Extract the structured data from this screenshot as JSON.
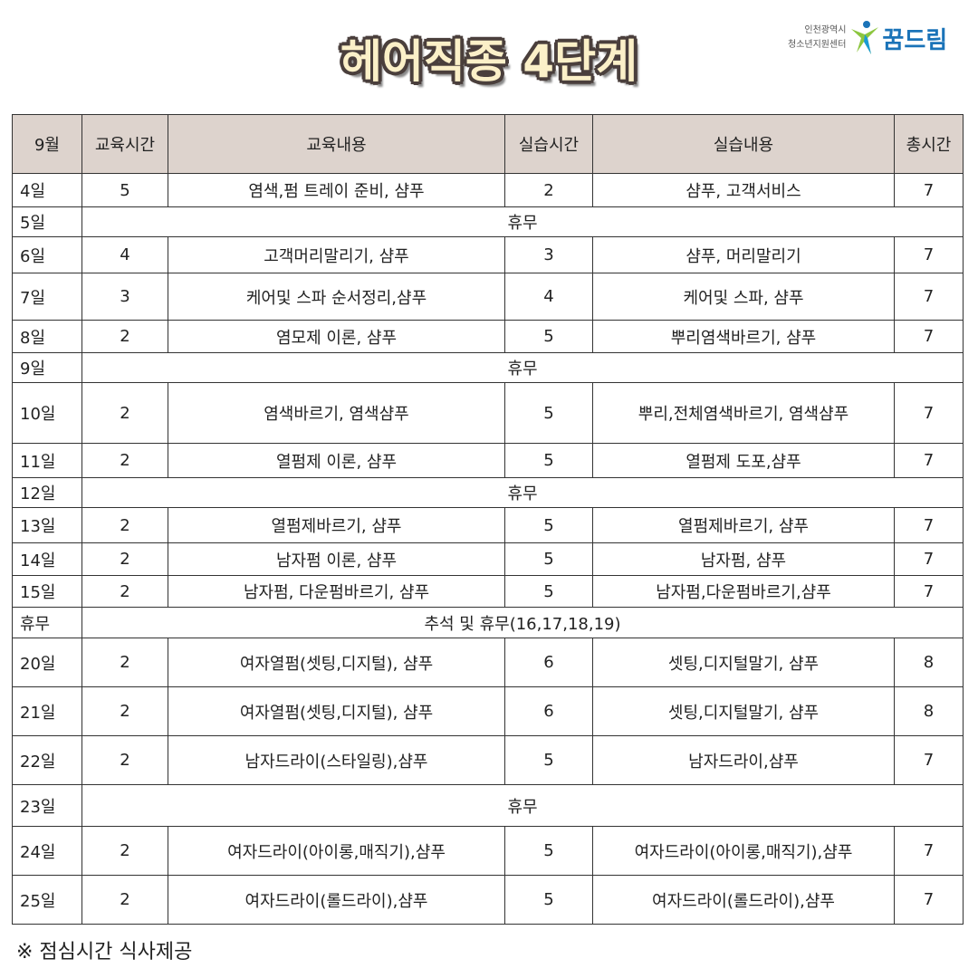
{
  "title": "헤어직종 4단계",
  "logo": {
    "org_line1": "인천광역시",
    "org_line2": "청소년지원센터",
    "brand": "꿈드림",
    "colors": [
      "#1a73b8",
      "#8cc63f"
    ]
  },
  "headers": [
    "9월",
    "교육시간",
    "교육내용",
    "실습시간",
    "실습내용",
    "총시간"
  ],
  "rows": [
    {
      "day": "4일",
      "edu_hours": "5",
      "edu": "염색,펌 트레이 준비, 샴푸",
      "prac_hours": "2",
      "prac": "샴푸, 고객서비스",
      "total": "7",
      "h": 37
    },
    {
      "day": "5일",
      "merged": "휴무",
      "h": 33
    },
    {
      "day": "6일",
      "edu_hours": "4",
      "edu": "고객머리말리기, 샴푸",
      "prac_hours": "3",
      "prac": "샴푸, 머리말리기",
      "total": "7",
      "h": 40
    },
    {
      "day": "7일",
      "edu_hours": "3",
      "edu": "케어및 스파 순서정리,샴푸",
      "prac_hours": "4",
      "prac": "케어및 스파, 샴푸",
      "total": "7",
      "h": 52
    },
    {
      "day": "8일",
      "edu_hours": "2",
      "edu": "염모제 이론, 샴푸",
      "prac_hours": "5",
      "prac": "뿌리염색바르기, 샴푸",
      "total": "7",
      "h": 36
    },
    {
      "day": "9일",
      "merged": "휴무",
      "h": 33
    },
    {
      "day": "10일",
      "edu_hours": "2",
      "edu": "염색바르기, 염색샴푸",
      "prac_hours": "5",
      "prac": "뿌리,전체염색바르기, 염색샴푸",
      "total": "7",
      "h": 67
    },
    {
      "day": "11일",
      "edu_hours": "2",
      "edu": "열펌제 이론, 샴푸",
      "prac_hours": "5",
      "prac": "열펌제 도포,샴푸",
      "total": "7",
      "h": 38
    },
    {
      "day": "12일",
      "merged": "휴무",
      "h": 33
    },
    {
      "day": "13일",
      "edu_hours": "2",
      "edu": "열펌제바르기, 샴푸",
      "prac_hours": "5",
      "prac": "열펌제바르기, 샴푸",
      "total": "7",
      "h": 39
    },
    {
      "day": "14일",
      "edu_hours": "2",
      "edu": "남자펌 이론, 샴푸",
      "prac_hours": "5",
      "prac": "남자펌, 샴푸",
      "total": "7",
      "h": 36
    },
    {
      "day": "15일",
      "edu_hours": "2",
      "edu": "남자펌, 다운펌바르기, 샴푸",
      "prac_hours": "5",
      "prac": "남자펌,다운펌바르기,샴푸",
      "total": "7",
      "h": 35
    },
    {
      "day": "휴무",
      "merged": "추석 및 휴무(16,17,18,19)",
      "h": 34
    },
    {
      "day": "20일",
      "edu_hours": "2",
      "edu": "여자열펌(셋팅,디지털), 샴푸",
      "prac_hours": "6",
      "prac": "셋팅,디지털말기, 샴푸",
      "total": "8",
      "h": 54
    },
    {
      "day": "21일",
      "edu_hours": "2",
      "edu": "여자열펌(셋팅,디지털), 샴푸",
      "prac_hours": "6",
      "prac": "셋팅,디지털말기, 샴푸",
      "total": "8",
      "h": 54
    },
    {
      "day": "22일",
      "edu_hours": "2",
      "edu": "남자드라이(스타일링),샴푸",
      "prac_hours": "5",
      "prac": "남자드라이,샴푸",
      "total": "7",
      "h": 54
    },
    {
      "day": "23일",
      "merged": "휴무",
      "h": 46
    },
    {
      "day": "24일",
      "edu_hours": "2",
      "edu": "여자드라이(아이롱,매직기),샴푸",
      "prac_hours": "5",
      "prac": "여자드라이(아이롱,매직기),샴푸",
      "total": "7",
      "h": 54
    },
    {
      "day": "25일",
      "edu_hours": "2",
      "edu": "여자드라이(롤드라이),샴푸",
      "prac_hours": "5",
      "prac": "여자드라이(롤드라이),샴푸",
      "total": "7",
      "h": 54
    }
  ],
  "note": "※ 점심시간 식사제공"
}
